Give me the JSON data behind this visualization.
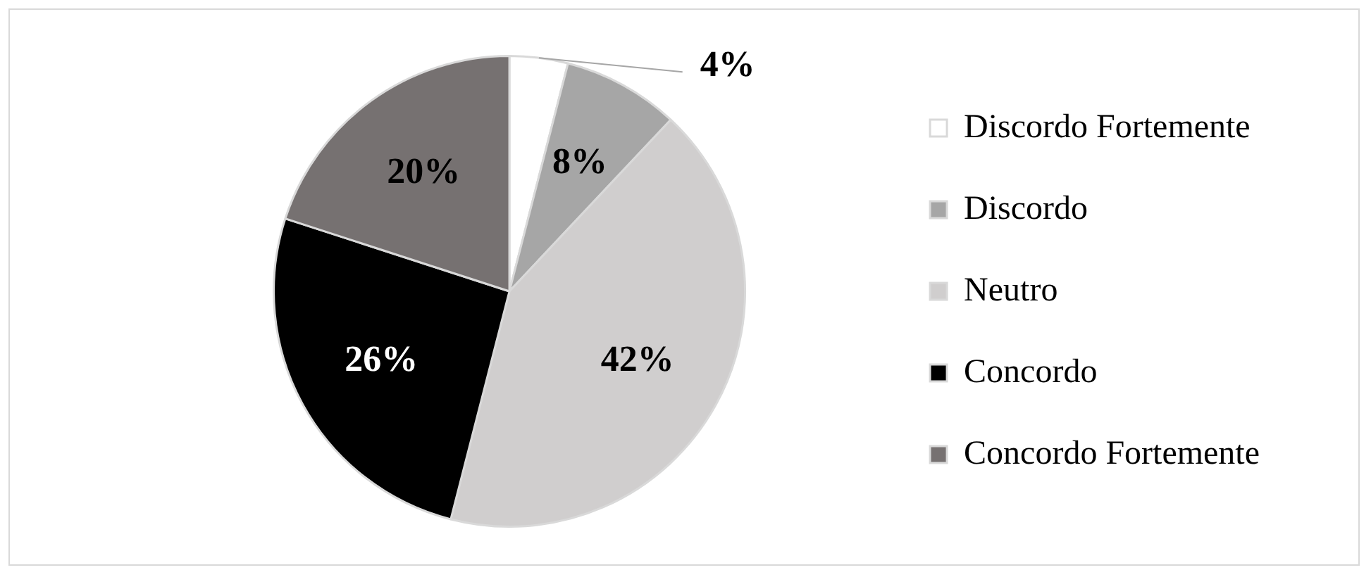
{
  "chart_data": {
    "type": "pie",
    "categories": [
      "Discordo Fortemente",
      "Discordo",
      "Neutro",
      "Concordo",
      "Concordo Fortemente"
    ],
    "values": [
      4,
      8,
      42,
      26,
      20
    ],
    "colors": [
      "#ffffff",
      "#a6a6a6",
      "#d0cece",
      "#000000",
      "#767171"
    ],
    "value_labels": [
      "4%",
      "8%",
      "42%",
      "26%",
      "20%"
    ],
    "legend": "right"
  }
}
